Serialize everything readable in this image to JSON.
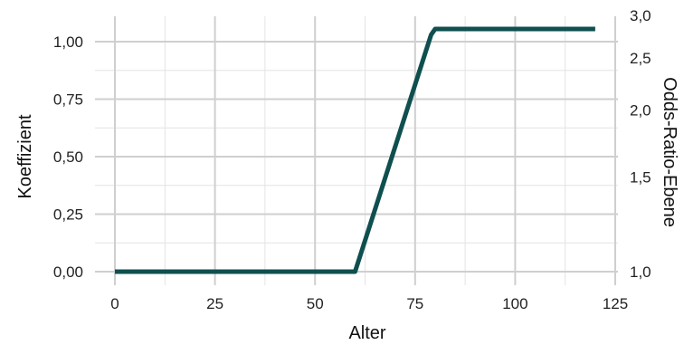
{
  "chart_data": {
    "type": "line",
    "title": "",
    "xlabel": "Alter",
    "ylabel": "Koeffizient",
    "y2label": "Odds-Ratio-Ebene",
    "xlim": [
      0,
      125
    ],
    "ylim": [
      0,
      1.05
    ],
    "x_ticks": [
      0,
      25,
      50,
      75,
      100,
      125
    ],
    "x_tick_labels": [
      "0",
      "25",
      "50",
      "75",
      "100",
      "125"
    ],
    "x_minor_ticks": [
      12.5,
      37.5,
      62.5,
      87.5,
      112.5
    ],
    "y_ticks": [
      0,
      0.25,
      0.5,
      0.75,
      1.0
    ],
    "y_tick_labels": [
      "0,00",
      "0,25",
      "0,50",
      "0,75",
      "1,00"
    ],
    "y_minor_ticks": [
      0.125,
      0.375,
      0.625,
      0.875
    ],
    "y2_ticks": [
      1.0,
      1.5,
      2.0,
      2.5,
      3.0
    ],
    "y2_tick_labels": [
      "1,0",
      "1,5",
      "2,0",
      "2,5",
      "3,0"
    ],
    "y2_scale": "log",
    "grid": true,
    "legend": false,
    "color": "#0f4f4f",
    "series": [
      {
        "x": [
          0,
          60,
          79,
          80,
          120
        ],
        "y": [
          0,
          0,
          1.03,
          1.055,
          1.055
        ]
      }
    ]
  }
}
